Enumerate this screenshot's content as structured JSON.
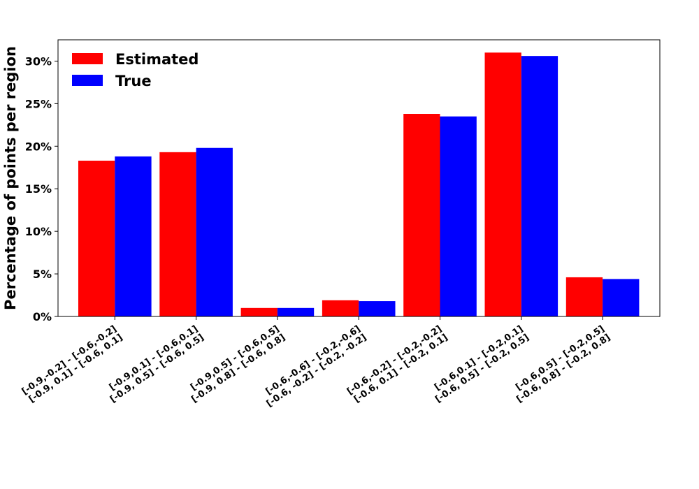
{
  "chart_data": {
    "type": "bar",
    "title": "",
    "xlabel": "",
    "ylabel": "Percentage of points per region",
    "ylim": [
      0,
      32.5
    ],
    "y_ticks": [
      0,
      5,
      10,
      15,
      20,
      25,
      30
    ],
    "y_tick_labels": [
      "0%",
      "5%",
      "10%",
      "15%",
      "20%",
      "25%",
      "30%"
    ],
    "grid": false,
    "legend_position": "top-left",
    "categories": [
      [
        "[-0.9,-0.2] - [-0.6,-0.2]",
        "[-0.9, 0.1] - [-0.6, 0.1]"
      ],
      [
        "[-0.9,0.1] - [-0.6,0.1]",
        "[-0.9, 0.5] - [-0.6, 0.5]"
      ],
      [
        "[-0.9,0.5] - [-0.6,0.5]",
        "[-0.9, 0.8] - [-0.6, 0.8]"
      ],
      [
        "[-0.6,-0.6] - [-0.2,-0.6]",
        "[-0.6, -0.2] - [-0.2, -0.2]"
      ],
      [
        "[-0.6,-0.2] - [-0.2,-0.2]",
        "[-0.6, 0.1] - [-0.2, 0.1]"
      ],
      [
        "[-0.6,0.1] - [-0.2,0.1]",
        "[-0.6, 0.5] - [-0.2, 0.5]"
      ],
      [
        "[-0.6,0.5] - [-0.2,0.5]",
        "[-0.6, 0.8] - [-0.2, 0.8]"
      ]
    ],
    "series": [
      {
        "name": "Estimated",
        "color": "#ff0000",
        "values": [
          18.3,
          19.3,
          1.0,
          1.9,
          23.8,
          31.0,
          4.6
        ]
      },
      {
        "name": "True",
        "color": "#0000ff",
        "values": [
          18.8,
          19.8,
          1.0,
          1.8,
          23.5,
          30.6,
          4.4
        ]
      }
    ]
  }
}
